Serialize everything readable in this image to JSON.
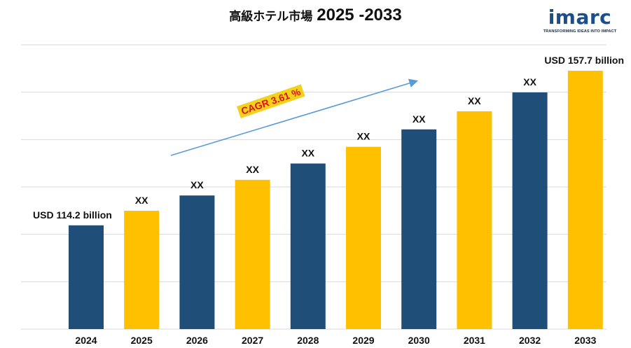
{
  "title": {
    "text": "高級ホテル市場",
    "years": "2025 -2033"
  },
  "logo": {
    "brand": "imarc",
    "tagline": "TRANSFORMING IDEAS INTO IMPACT"
  },
  "cagr_label": "CAGR 3.61 %",
  "colors": {
    "navy": "#1f4e79",
    "gold": "#ffc000",
    "arrow": "#5b9bd5",
    "grid": "#d9d9d9"
  },
  "chart_data": {
    "type": "bar",
    "categories": [
      "2024",
      "2025",
      "2026",
      "2027",
      "2028",
      "2029",
      "2030",
      "2031",
      "2032",
      "2033"
    ],
    "values": [
      114.2,
      118.3,
      122.6,
      127.0,
      131.6,
      136.3,
      141.2,
      146.3,
      151.6,
      157.7
    ],
    "data_labels": [
      "USD 114.2 billion",
      "XX",
      "XX",
      "XX",
      "XX",
      "XX",
      "XX",
      "XX",
      "XX",
      "USD 157.7 billion"
    ],
    "bar_colors": [
      "#1f4e79",
      "#ffc000",
      "#1f4e79",
      "#ffc000",
      "#1f4e79",
      "#ffc000",
      "#1f4e79",
      "#ffc000",
      "#1f4e79",
      "#ffc000"
    ],
    "ylim": [
      85,
      165
    ],
    "grid": true,
    "legend": "none",
    "xlabel": "",
    "ylabel": ""
  }
}
